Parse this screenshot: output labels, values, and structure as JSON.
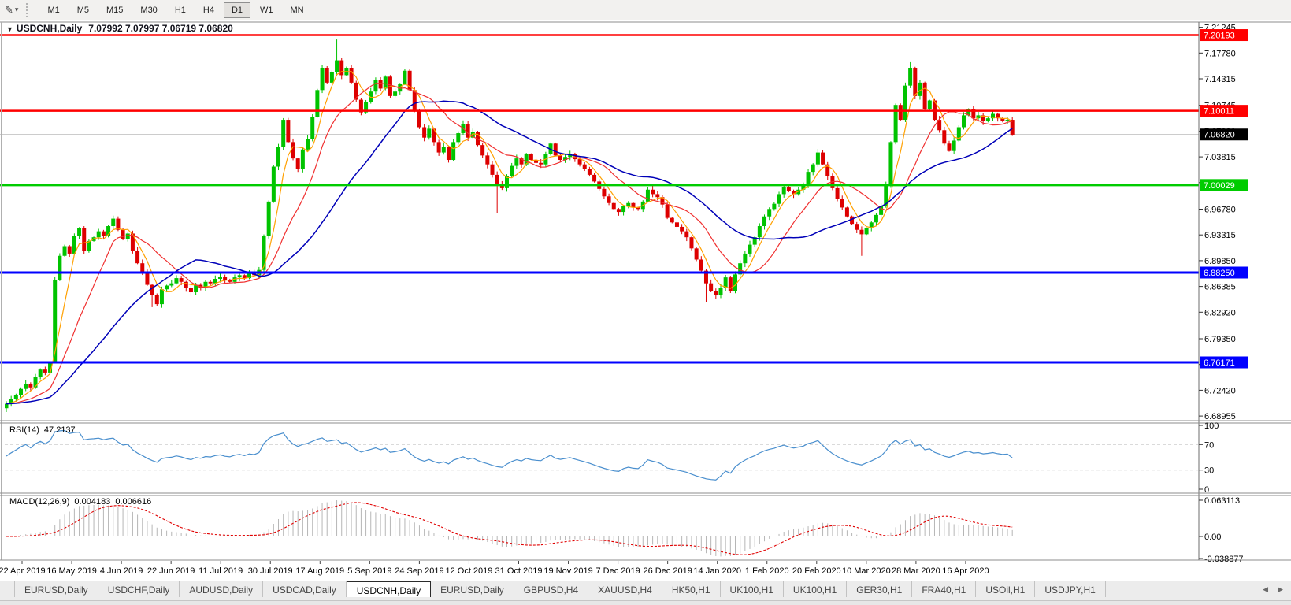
{
  "toolbar": {
    "draw_tool_glyph": "✎",
    "dropdown_glyph": "▾",
    "timeframes": [
      "M1",
      "M5",
      "M15",
      "M30",
      "H1",
      "H4",
      "D1",
      "W1",
      "MN"
    ],
    "active_timeframe": "D1"
  },
  "header": {
    "collapse_glyph": "▼",
    "symbol": "USDCNH,Daily",
    "ohlc": "7.07992 7.07997 7.06719 7.06820"
  },
  "price_axis": {
    "ticks": [
      "7.21245",
      "7.17780",
      "7.14315",
      "7.10745",
      "7.07280",
      "7.03815",
      "7.00350",
      "6.96780",
      "6.93315",
      "6.89850",
      "6.86385",
      "6.82920",
      "6.79350",
      "6.75885",
      "6.72420",
      "6.68955"
    ]
  },
  "levels": [
    {
      "label": "7.20193",
      "value": 7.20193,
      "color": "#ff0000",
      "badge_text": "#ffffff",
      "thickness": 2.5
    },
    {
      "label": "7.10011",
      "value": 7.10011,
      "color": "#ff0000",
      "badge_text": "#ffffff",
      "thickness": 2.5
    },
    {
      "label": "7.00029",
      "value": 7.00029,
      "color": "#00cc00",
      "badge_text": "#ffffff",
      "thickness": 3
    },
    {
      "label": "6.88250",
      "value": 6.8825,
      "color": "#0000ff",
      "badge_text": "#ffffff",
      "thickness": 3
    },
    {
      "label": "6.76171",
      "value": 6.76171,
      "color": "#0000ff",
      "badge_text": "#ffffff",
      "thickness": 3
    }
  ],
  "current_price": {
    "label": "7.06820",
    "value": 7.0682,
    "line_color": "#bcbcbc",
    "badge_bg": "#000000",
    "badge_text": "#ffffff"
  },
  "time_axis": {
    "dates": [
      "22 Apr 2019",
      "16 May 2019",
      "4 Jun 2019",
      "22 Jun 2019",
      "11 Jul 2019",
      "30 Jul 2019",
      "17 Aug 2019",
      "5 Sep 2019",
      "24 Sep 2019",
      "12 Oct 2019",
      "31 Oct 2019",
      "19 Nov 2019",
      "7 Dec 2019",
      "26 Dec 2019",
      "14 Jan 2020",
      "1 Feb 2020",
      "20 Feb 2020",
      "10 Mar 2020",
      "28 Mar 2020",
      "16 Apr 2020"
    ]
  },
  "chart_data": {
    "type": "candlestick",
    "symbol": "USDCNH",
    "period": "Daily",
    "up_color": "#00c300",
    "down_color": "#dd0000",
    "first_open": 6.7,
    "closes": [
      6.706,
      6.712,
      6.718,
      6.726,
      6.733,
      6.728,
      6.742,
      6.752,
      6.748,
      6.762,
      6.872,
      6.905,
      6.918,
      6.908,
      6.932,
      6.942,
      6.912,
      6.925,
      6.93,
      6.938,
      6.932,
      6.945,
      6.955,
      6.94,
      6.928,
      6.935,
      6.912,
      6.895,
      6.882,
      6.866,
      6.852,
      6.84,
      6.86,
      6.865,
      6.868,
      6.875,
      6.87,
      6.862,
      6.856,
      6.866,
      6.862,
      6.87,
      6.868,
      6.874,
      6.877,
      6.872,
      6.87,
      6.876,
      6.879,
      6.875,
      6.881,
      6.879,
      6.886,
      6.932,
      6.978,
      7.025,
      7.052,
      7.088,
      7.058,
      7.036,
      7.022,
      7.048,
      7.062,
      7.092,
      7.128,
      7.158,
      7.138,
      7.152,
      7.168,
      7.148,
      7.158,
      7.138,
      7.115,
      7.098,
      7.112,
      7.126,
      7.142,
      7.13,
      7.146,
      7.12,
      7.126,
      7.136,
      7.154,
      7.128,
      7.1,
      7.078,
      7.064,
      7.076,
      7.058,
      7.044,
      7.052,
      7.034,
      7.058,
      7.07,
      7.082,
      7.064,
      7.072,
      7.054,
      7.04,
      7.028,
      7.014,
      7.002,
      6.996,
      7.012,
      7.026,
      7.036,
      7.028,
      7.042,
      7.034,
      7.03,
      7.028,
      7.042,
      7.056,
      7.04,
      7.034,
      7.038,
      7.042,
      7.035,
      7.028,
      7.022,
      7.014,
      7.005,
      6.995,
      6.985,
      6.976,
      6.968,
      6.964,
      6.972,
      6.976,
      6.97,
      6.968,
      6.978,
      6.994,
      6.988,
      6.984,
      6.974,
      6.956,
      6.95,
      6.944,
      6.938,
      6.93,
      6.915,
      6.9,
      6.885,
      6.868,
      6.858,
      6.852,
      6.862,
      6.876,
      6.858,
      6.88,
      6.895,
      6.908,
      6.92,
      6.93,
      6.945,
      6.958,
      6.968,
      6.975,
      6.988,
      6.998,
      6.992,
      6.988,
      6.994,
      7.0,
      7.018,
      7.028,
      7.044,
      7.028,
      7.012,
      6.996,
      6.982,
      6.97,
      6.958,
      6.948,
      6.94,
      6.934,
      6.942,
      6.95,
      6.96,
      6.972,
      7.0,
      7.058,
      7.108,
      7.088,
      7.134,
      7.158,
      7.12,
      7.138,
      7.102,
      7.114,
      7.088,
      7.074,
      7.056,
      7.046,
      7.06,
      7.078,
      7.094,
      7.102,
      7.09,
      7.094,
      7.086,
      7.09,
      7.096,
      7.09,
      7.086,
      7.088,
      7.068
    ],
    "wick_overrides": {
      "0": {
        "low": 6.695
      },
      "30": {
        "low": 6.836
      },
      "68": {
        "high": 7.196
      },
      "101": {
        "low": 6.963
      },
      "144": {
        "low": 6.843
      },
      "176": {
        "low": 6.905
      },
      "186": {
        "high": 7.1655
      }
    },
    "moving_averages": [
      {
        "name": "fast",
        "period": 5,
        "color": "#ffa000"
      },
      {
        "name": "mid",
        "period": 13,
        "color": "#f03030"
      },
      {
        "name": "slow",
        "period": 30,
        "color": "#0000b8"
      }
    ]
  },
  "rsi": {
    "name": "RSI(14)",
    "value": "47.2137",
    "period": 14,
    "color": "#4a8fce",
    "ticks": [
      "100",
      "70",
      "30",
      "0"
    ],
    "levels": [
      70,
      30
    ]
  },
  "macd": {
    "name": "MACD(12,26,9)",
    "value_main": "0.004183",
    "value_signal": "0.006616",
    "fast": 12,
    "slow": 26,
    "signal": 9,
    "hist_color": "#b6b6b6",
    "signal_color": "#e00000",
    "ticks": [
      "0.063113",
      "0.00",
      "-0.038877"
    ]
  },
  "tabs": {
    "items": [
      "EURUSD,Daily",
      "USDCHF,Daily",
      "AUDUSD,Daily",
      "USDCAD,Daily",
      "USDCNH,Daily",
      "EURUSD,Daily",
      "GBPUSD,H4",
      "XAUUSD,H4",
      "HK50,H1",
      "UK100,H1",
      "UK100,H1",
      "GER30,H1",
      "FRA40,H1",
      "USOil,H1",
      "USDJPY,H1"
    ],
    "active_index": 4,
    "left_arrow": "◀",
    "right_arrow": "▶"
  }
}
